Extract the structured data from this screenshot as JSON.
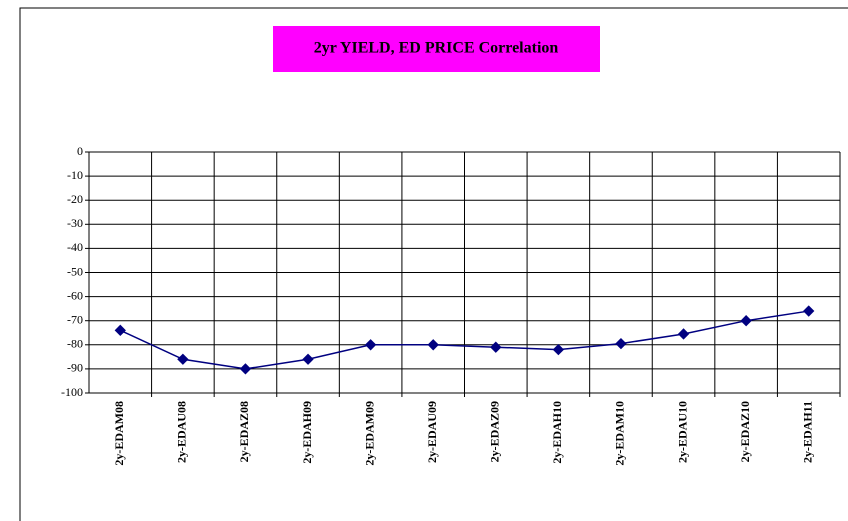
{
  "chart_data": {
    "type": "line",
    "title": "2yr YIELD, ED PRICE Correlation",
    "categories": [
      "2y-EDAM08",
      "2y-EDAU08",
      "2y-EDAZ08",
      "2y-EDAH09",
      "2y-EDAM09",
      "2y-EDAU09",
      "2y-EDAZ09",
      "2y-EDAH10",
      "2y-EDAM10",
      "2y-EDAU10",
      "2y-EDAZ10",
      "2y-EDAH11"
    ],
    "series": [
      {
        "color": "#000080",
        "values": [
          -74,
          -86,
          -90,
          -86,
          -80,
          -80,
          -81,
          -82,
          -79.5,
          -75.5,
          -70,
          -66
        ]
      }
    ],
    "ylim": [
      -100,
      0
    ],
    "yticks": [
      -100,
      -90,
      -80,
      -70,
      -60,
      -50,
      -40,
      -30,
      -20,
      -10,
      0
    ],
    "grid": true,
    "title_background": "#ff00ff"
  }
}
